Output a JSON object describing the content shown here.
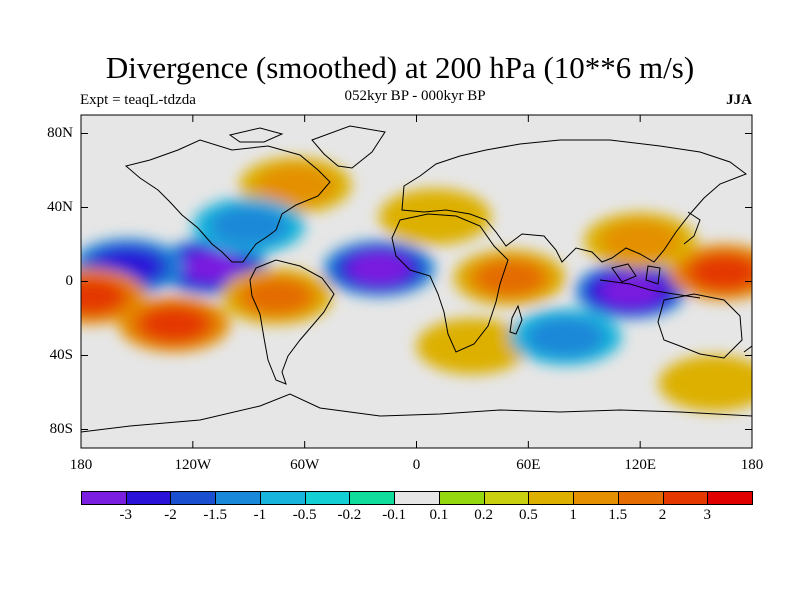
{
  "title": "Divergence (smoothed) at 200 hPa (10**6 m/s)",
  "subtitle_left": "Expt = teaqL-tdzda",
  "subtitle_center": "052kyr BP - 000kyr BP",
  "subtitle_right": "JJA",
  "map": {
    "projection": "cylindrical equidistant",
    "lon_range": [
      -180,
      180
    ],
    "lat_range": [
      -90,
      90
    ],
    "lat_ticks": [
      {
        "value": 80,
        "label": "80N"
      },
      {
        "value": 40,
        "label": "40N"
      },
      {
        "value": 0,
        "label": "0"
      },
      {
        "value": -40,
        "label": "40S"
      },
      {
        "value": -80,
        "label": "80S"
      }
    ],
    "lon_ticks": [
      {
        "value": -180,
        "label": "180"
      },
      {
        "value": -120,
        "label": "120W"
      },
      {
        "value": -60,
        "label": "60W"
      },
      {
        "value": 0,
        "label": "0"
      },
      {
        "value": 60,
        "label": "60E"
      },
      {
        "value": 120,
        "label": "120E"
      },
      {
        "value": 180,
        "label": "180"
      }
    ]
  },
  "colorbar": {
    "colors": [
      "#7a1ee0",
      "#2a12d8",
      "#1a50d0",
      "#1a88d8",
      "#18b4dc",
      "#14d0d4",
      "#10dc9c",
      "#e6e6e6",
      "#96d810",
      "#c8d010",
      "#ddb000",
      "#e49000",
      "#e46c00",
      "#e43800",
      "#e00000"
    ],
    "labels": [
      "-3",
      "-2",
      "-1.5",
      "-1",
      "-0.5",
      "-0.2",
      "-0.1",
      "0.1",
      "0.2",
      "0.5",
      "1",
      "1.5",
      "2",
      "3"
    ]
  },
  "chart_data": {
    "type": "heatmap",
    "title": "Divergence (smoothed) at 200 hPa (10**6 m/s)",
    "period": "052kyr BP - 000kyr BP",
    "season": "JJA",
    "contour_levels": [
      -3,
      -2,
      -1.5,
      -1,
      -0.5,
      -0.2,
      -0.1,
      0.1,
      0.2,
      0.5,
      1,
      1.5,
      2,
      3
    ],
    "features": [
      {
        "lon": -110,
        "lat": 8,
        "value": -3.5
      },
      {
        "lon": -155,
        "lat": 8,
        "value": -2
      },
      {
        "lon": -20,
        "lat": 7,
        "value": -3
      },
      {
        "lon": 115,
        "lat": -5,
        "value": -3.2
      },
      {
        "lon": 165,
        "lat": 5,
        "value": 2.2
      },
      {
        "lon": -175,
        "lat": -8,
        "value": 2.3
      },
      {
        "lon": -130,
        "lat": -23,
        "value": 2.2
      },
      {
        "lon": -75,
        "lat": -8,
        "value": 2
      },
      {
        "lon": 50,
        "lat": 2,
        "value": 1.8
      },
      {
        "lon": 120,
        "lat": 22,
        "value": 1.5
      },
      {
        "lon": -65,
        "lat": 52,
        "value": 1.3
      },
      {
        "lon": 30,
        "lat": -35,
        "value": 1
      },
      {
        "lon": 160,
        "lat": -55,
        "value": 1
      },
      {
        "lon": -90,
        "lat": 30,
        "value": -1
      },
      {
        "lon": 80,
        "lat": -30,
        "value": -1
      },
      {
        "lon": 10,
        "lat": 35,
        "value": 1
      }
    ]
  }
}
